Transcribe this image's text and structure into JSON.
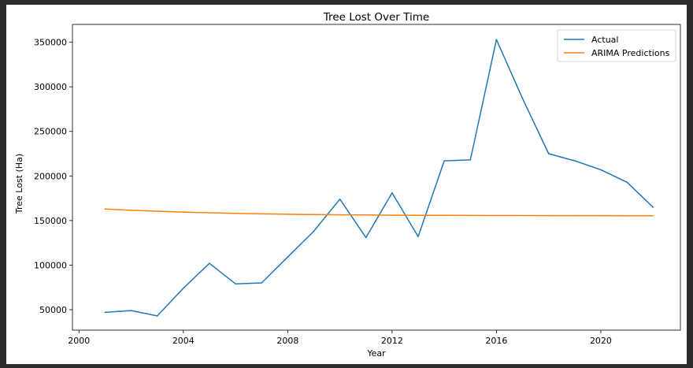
{
  "chart_data": {
    "type": "line",
    "title": "Tree Lost Over Time",
    "xlabel": "Year",
    "ylabel": "Tree Lost (Ha)",
    "xlim": [
      1999.75,
      2023.05
    ],
    "ylim": [
      27000,
      370000
    ],
    "xticks": [
      2000,
      2004,
      2008,
      2012,
      2016,
      2020
    ],
    "yticks": [
      50000,
      100000,
      150000,
      200000,
      250000,
      300000,
      350000
    ],
    "grid": false,
    "legend": "top-right",
    "series": [
      {
        "name": "Actual",
        "color": "#1f77b4",
        "x": [
          2001,
          2002,
          2003,
          2004,
          2005,
          2006,
          2007,
          2008,
          2009,
          2010,
          2011,
          2012,
          2013,
          2014,
          2015,
          2016,
          2017,
          2018,
          2019,
          2020,
          2021,
          2022
        ],
        "y": [
          47000,
          49000,
          43000,
          74000,
          102000,
          79000,
          80000,
          109000,
          138000,
          174000,
          131000,
          181000,
          132000,
          217000,
          218000,
          353000,
          287000,
          225000,
          217000,
          207000,
          193000,
          165000
        ]
      },
      {
        "name": "ARIMA Predictions",
        "color": "#ff7f0e",
        "x": [
          2001,
          2002,
          2003,
          2004,
          2005,
          2006,
          2007,
          2008,
          2009,
          2010,
          2011,
          2012,
          2013,
          2014,
          2015,
          2016,
          2017,
          2018,
          2019,
          2020,
          2021,
          2022
        ],
        "y": [
          163000,
          161500,
          160500,
          159500,
          158700,
          158000,
          157500,
          157000,
          156700,
          156400,
          156200,
          156000,
          155900,
          155800,
          155700,
          155650,
          155600,
          155550,
          155500,
          155500,
          155450,
          155400
        ]
      }
    ]
  }
}
